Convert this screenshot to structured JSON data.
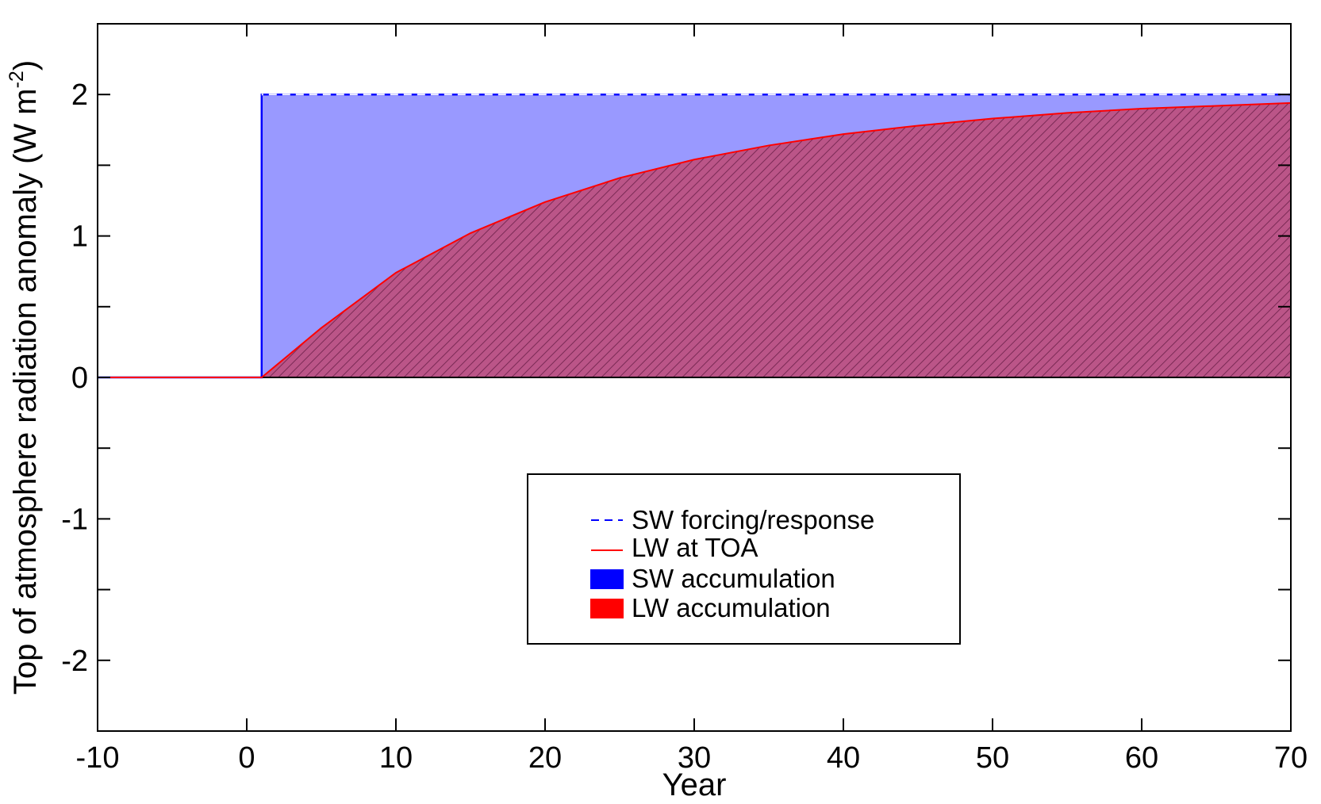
{
  "chart_data": {
    "type": "area",
    "title": "",
    "xlabel": "Year",
    "ylabel": "Top of atmosphere radiation anomaly (W m",
    "ylabel_unit_exponent": "-2",
    "ylabel_close": ")",
    "xlim": [
      -10,
      70
    ],
    "ylim": [
      -2.5,
      2.5
    ],
    "x_ticks": [
      -10,
      0,
      10,
      20,
      30,
      40,
      50,
      60,
      70
    ],
    "y_ticks": [
      -2,
      -1,
      0,
      1,
      2
    ],
    "x_tick_labels": [
      "-10",
      "0",
      "10",
      "20",
      "30",
      "40",
      "50",
      "60",
      "70"
    ],
    "y_tick_labels": [
      "-2",
      "-1",
      "0",
      "1",
      "2"
    ],
    "grid": false,
    "legend_position": "center-bottom",
    "series": [
      {
        "name": "SW forcing/response",
        "style": "dashed",
        "color": "#0000ff",
        "x": [
          -10,
          1,
          1,
          70
        ],
        "y": [
          0,
          0,
          2,
          2
        ]
      },
      {
        "name": "LW at TOA",
        "style": "solid",
        "color": "#ff0000",
        "x": [
          -10,
          1,
          5,
          10,
          15,
          20,
          25,
          30,
          35,
          40,
          45,
          50,
          55,
          60,
          65,
          70
        ],
        "y": [
          0,
          0,
          0.35,
          0.74,
          1.02,
          1.24,
          1.41,
          1.54,
          1.64,
          1.72,
          1.78,
          1.83,
          1.87,
          1.9,
          1.92,
          1.94
        ]
      },
      {
        "name": "SW accumulation",
        "style": "fill",
        "color": "#0000ff",
        "fill_color": "#9999ff",
        "x": [
          1,
          70
        ],
        "y": [
          2,
          2
        ]
      },
      {
        "name": "LW accumulation",
        "style": "hatched-fill",
        "color": "#ff0000",
        "fill_color": "#bb5588",
        "x": [
          1,
          5,
          10,
          15,
          20,
          25,
          30,
          35,
          40,
          45,
          50,
          55,
          60,
          65,
          70
        ],
        "y": [
          0,
          0.35,
          0.74,
          1.02,
          1.24,
          1.41,
          1.54,
          1.64,
          1.72,
          1.78,
          1.83,
          1.87,
          1.9,
          1.92,
          1.94
        ]
      }
    ]
  }
}
